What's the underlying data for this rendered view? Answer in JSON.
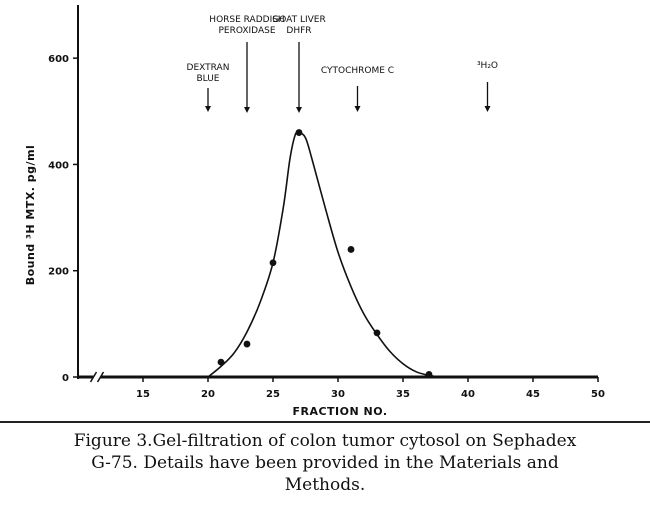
{
  "chart_data": {
    "type": "scatter",
    "title": "",
    "xlabel": "FRACTION NO.",
    "ylabel": "Bound ³H MTX. pg/ml",
    "xlim": [
      10,
      50
    ],
    "ylim": [
      0,
      700
    ],
    "x_ticks": [
      "15",
      "20",
      "25",
      "30",
      "35",
      "40",
      "45",
      "50"
    ],
    "x_tick_values": [
      15,
      20,
      25,
      30,
      35,
      40,
      45,
      50
    ],
    "y_ticks": [
      "0",
      "200",
      "400",
      "600"
    ],
    "y_tick_values": [
      0,
      200,
      400,
      600
    ],
    "axis_break": true,
    "grid": false,
    "series": [
      {
        "points": [
          {
            "x": 21,
            "y": 28
          },
          {
            "x": 23,
            "y": 62
          },
          {
            "x": 25,
            "y": 215
          },
          {
            "x": 27,
            "y": 460
          },
          {
            "x": 31,
            "y": 240
          },
          {
            "x": 33,
            "y": 83
          },
          {
            "x": 37,
            "y": 5
          }
        ],
        "curve": [
          {
            "x": 20,
            "y": 0
          },
          {
            "x": 21,
            "y": 20
          },
          {
            "x": 22,
            "y": 45
          },
          {
            "x": 23,
            "y": 85
          },
          {
            "x": 24,
            "y": 140
          },
          {
            "x": 25,
            "y": 215
          },
          {
            "x": 25.8,
            "y": 320
          },
          {
            "x": 26.3,
            "y": 410
          },
          {
            "x": 26.7,
            "y": 455
          },
          {
            "x": 27,
            "y": 460
          },
          {
            "x": 27.5,
            "y": 450
          },
          {
            "x": 28,
            "y": 410
          },
          {
            "x": 29,
            "y": 320
          },
          {
            "x": 30,
            "y": 235
          },
          {
            "x": 31,
            "y": 170
          },
          {
            "x": 32,
            "y": 118
          },
          {
            "x": 33,
            "y": 80
          },
          {
            "x": 34,
            "y": 48
          },
          {
            "x": 35,
            "y": 25
          },
          {
            "x": 36,
            "y": 10
          },
          {
            "x": 37,
            "y": 3
          },
          {
            "x": 38,
            "y": 0
          },
          {
            "x": 40,
            "y": 0
          }
        ]
      }
    ],
    "annotations": [
      {
        "lines": [
          "DEXTRAN",
          "BLUE"
        ],
        "x": 20,
        "arrow": true
      },
      {
        "lines": [
          "HORSE RADDISH",
          "PEROXIDASE"
        ],
        "x": 23,
        "arrow": true
      },
      {
        "lines": [
          "GOAT LIVER",
          "DHFR"
        ],
        "x": 27,
        "arrow": true
      },
      {
        "lines": [
          "CYTOCHROME C"
        ],
        "x": 31.5,
        "arrow": true
      },
      {
        "lines": [
          "³H₂O"
        ],
        "x": 41.5,
        "arrow": true
      }
    ]
  },
  "caption": {
    "line1": "Figure 3.Gel-filtration of colon tumor cytosol on Sephadex",
    "line2": "G-75. Details have been provided in the Materials and",
    "line3": "Methods."
  }
}
